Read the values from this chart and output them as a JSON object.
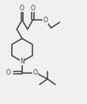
{
  "bg_color": "#f0f0f0",
  "line_color": "#404040",
  "line_width": 1.1,
  "figsize": [
    1.1,
    1.31
  ],
  "dpi": 100,
  "xlim": [
    0,
    110
  ],
  "ylim": [
    0,
    131
  ]
}
